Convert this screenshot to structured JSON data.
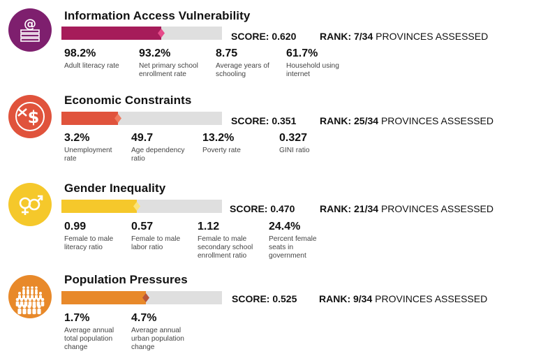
{
  "sections": [
    {
      "title": "Information Access Vulnerability",
      "icon": "literacy-at-icon",
      "color": "#a61c5a",
      "score_label": "SCORE:",
      "score": "0.620",
      "score_fraction": 0.62,
      "rank_label": "RANK:",
      "rank": "7/34",
      "rank_suffix": "PROVINCES ASSESSED",
      "stats": [
        {
          "value": "98.2%",
          "label": "Adult literacy rate"
        },
        {
          "value": "93.2%",
          "label": "Net primary school enrollment rate"
        },
        {
          "value": "8.75",
          "label": "Average years of schooling"
        },
        {
          "value": "61.7%",
          "label": "Household using internet"
        }
      ]
    },
    {
      "title": "Economic Constraints",
      "icon": "dollar-sign-icon",
      "color": "#e0533c",
      "score_label": "SCORE:",
      "score": "0.351",
      "score_fraction": 0.351,
      "rank_label": "RANK:",
      "rank": "25/34",
      "rank_suffix": "PROVINCES ASSESSED",
      "stats": [
        {
          "value": "3.2%",
          "label": "Unemployment rate"
        },
        {
          "value": "49.7",
          "label": "Age dependency ratio"
        },
        {
          "value": "13.2%",
          "label": "Poverty rate"
        },
        {
          "value": "0.327",
          "label": "GINI ratio"
        }
      ]
    },
    {
      "title": "Gender Inequality",
      "icon": "gender-symbols-icon",
      "color": "#f5c82b",
      "score_label": "SCORE:",
      "score": "0.470",
      "score_fraction": 0.47,
      "rank_label": "RANK:",
      "rank": "21/34",
      "rank_suffix": "PROVINCES ASSESSED",
      "stats": [
        {
          "value": "0.99",
          "label": "Female to male literacy ratio"
        },
        {
          "value": "0.57",
          "label": "Female to male labor ratio"
        },
        {
          "value": "1.12",
          "label": "Female to male secondary school enrollment ratio"
        },
        {
          "value": "24.4%",
          "label": "Percent female seats in government"
        }
      ]
    },
    {
      "title": "Population Pressures",
      "icon": "population-crowd-icon",
      "color": "#e8892a",
      "score_label": "SCORE:",
      "score": "0.525",
      "score_fraction": 0.525,
      "rank_label": "RANK:",
      "rank": "9/34",
      "rank_suffix": "PROVINCES ASSESSED",
      "stats": [
        {
          "value": "1.7%",
          "label": "Average annual total population change"
        },
        {
          "value": "4.7%",
          "label": "Average annual urban population change"
        }
      ]
    }
  ]
}
